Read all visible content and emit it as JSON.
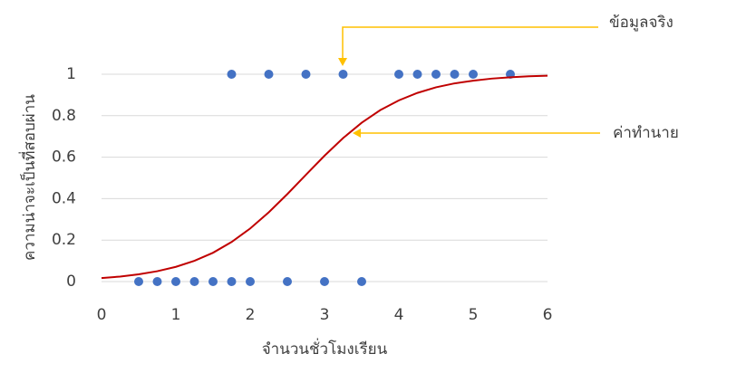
{
  "chart_data": {
    "type": "scatter",
    "x_label": "จำนวนชั่วโมงเรียน",
    "y_label": "ความน่าจะเป็นที่สอบผ่าน",
    "xlim": [
      0,
      6
    ],
    "xticks": [
      0,
      1,
      2,
      3,
      4,
      5,
      6
    ],
    "ylim": [
      0,
      1
    ],
    "yticks": [
      0,
      0.2,
      0.4,
      0.6,
      0.8,
      1
    ],
    "grid": true,
    "series": [
      {
        "style": "markers",
        "color": "#4472c4",
        "x": [
          0.5,
          0.75,
          1,
          1.25,
          1.5,
          1.75,
          1.75,
          2,
          2.25,
          2.5,
          2.75,
          3,
          3.25,
          3.5,
          4,
          4.25,
          4.5,
          4.75,
          5,
          5.5
        ],
        "values": [
          0,
          0,
          0,
          0,
          0,
          0,
          1,
          0,
          1,
          0,
          1,
          0,
          1,
          0,
          1,
          1,
          1,
          1,
          1,
          1
        ]
      },
      {
        "style": "line",
        "color": "#c00000",
        "x": [
          0,
          0.25,
          0.5,
          0.75,
          1,
          1.25,
          1.5,
          1.75,
          2,
          2.25,
          2.5,
          2.75,
          3,
          3.25,
          3.5,
          3.75,
          4,
          4.25,
          4.5,
          4.75,
          5,
          5.25,
          5.5,
          5.75,
          6
        ],
        "values": [
          0.017,
          0.024,
          0.035,
          0.05,
          0.071,
          0.1,
          0.139,
          0.191,
          0.256,
          0.334,
          0.422,
          0.515,
          0.607,
          0.692,
          0.766,
          0.827,
          0.874,
          0.91,
          0.937,
          0.956,
          0.969,
          0.979,
          0.985,
          0.99,
          0.993
        ]
      }
    ],
    "annotations": [
      {
        "text": "ข้อมูลจริง",
        "color": "#ffc000"
      },
      {
        "text": "ค่าทำนาย",
        "color": "#ffc000"
      }
    ]
  }
}
